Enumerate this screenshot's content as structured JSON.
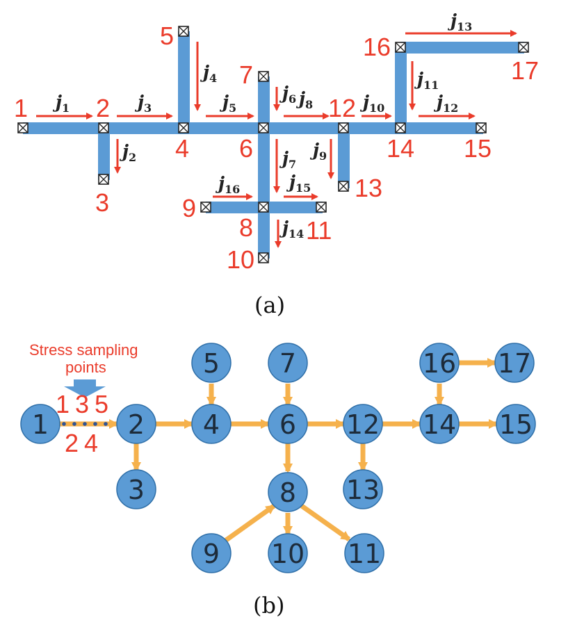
{
  "colors": {
    "pipe": "#5b9bd5",
    "arrow_red": "#ea3b2a",
    "edge_orange": "#f5b14c",
    "node_fill": "#5b9bd5",
    "node_stroke": "#2f6fa8",
    "text_dark": "#1d2b3a"
  },
  "panel_a": {
    "caption": "(a)",
    "junction_labels": [
      "1",
      "2",
      "3",
      "4",
      "5",
      "6",
      "7",
      "8",
      "9",
      "10",
      "11",
      "12",
      "13",
      "14",
      "15",
      "16",
      "17"
    ],
    "flow_labels": [
      {
        "j": "j",
        "sub": "1"
      },
      {
        "j": "j",
        "sub": "2"
      },
      {
        "j": "j",
        "sub": "3"
      },
      {
        "j": "j",
        "sub": "4"
      },
      {
        "j": "j",
        "sub": "5"
      },
      {
        "j": "j",
        "sub": "6"
      },
      {
        "j": "j",
        "sub": "7"
      },
      {
        "j": "j",
        "sub": "8"
      },
      {
        "j": "j",
        "sub": "9"
      },
      {
        "j": "j",
        "sub": "10"
      },
      {
        "j": "j",
        "sub": "11"
      },
      {
        "j": "j",
        "sub": "12"
      },
      {
        "j": "j",
        "sub": "13"
      },
      {
        "j": "j",
        "sub": "14"
      },
      {
        "j": "j",
        "sub": "15"
      },
      {
        "j": "j",
        "sub": "16"
      }
    ]
  },
  "panel_b": {
    "caption": "(b)",
    "annotation_line1": "Stress sampling",
    "annotation_line2": "points",
    "sampling_points_top": [
      "1",
      "3",
      "5"
    ],
    "sampling_points_bottom": [
      "2",
      "4"
    ],
    "node_labels": [
      "1",
      "2",
      "3",
      "4",
      "5",
      "6",
      "7",
      "8",
      "9",
      "10",
      "11",
      "12",
      "13",
      "14",
      "15",
      "16",
      "17"
    ]
  }
}
